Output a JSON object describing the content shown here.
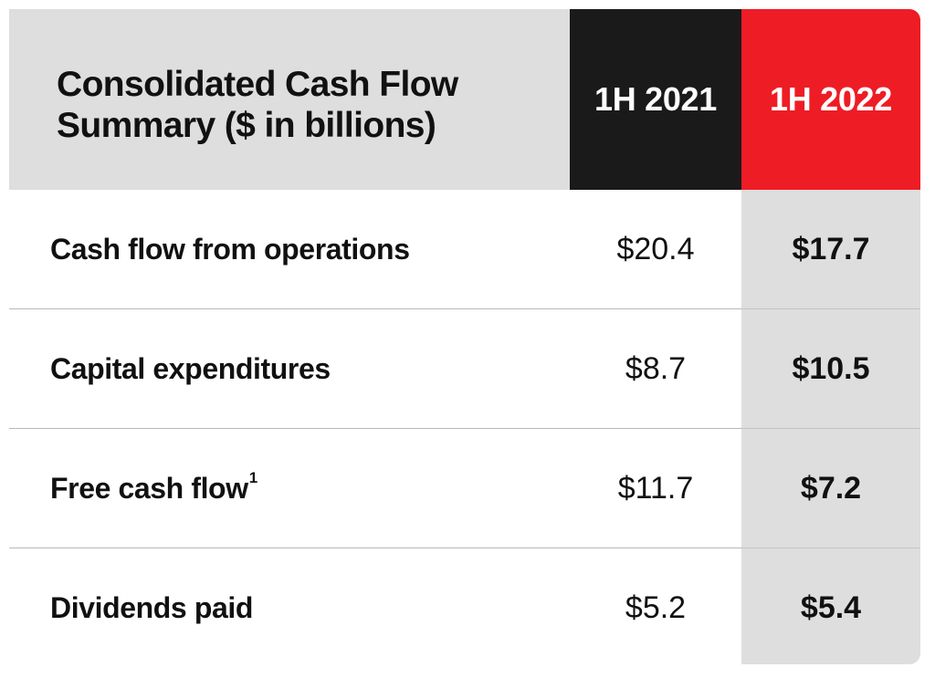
{
  "colors": {
    "header_gray": "#dedede",
    "col_2021_header": "#1a1a1a",
    "col_2022_header": "#ee1c25",
    "col_2022_body": "#dedede",
    "text": "#111111"
  },
  "chart_data": {
    "type": "table",
    "title": "Consolidated Cash Flow Summary ($ in billions)",
    "title_lines": [
      "Consolidated Cash Flow",
      "Summary ($ in billions)"
    ],
    "columns": [
      "1H 2021",
      "1H 2022"
    ],
    "rows": [
      {
        "label": "Cash flow from operations",
        "footnote": "",
        "values": [
          "$20.4",
          "$17.7"
        ]
      },
      {
        "label": "Capital expenditures",
        "footnote": "",
        "values": [
          "$8.7",
          "$10.5"
        ]
      },
      {
        "label": "Free cash flow",
        "footnote": "1",
        "values": [
          "$11.7",
          "$7.2"
        ]
      },
      {
        "label": "Dividends paid",
        "footnote": "",
        "values": [
          "$5.2",
          "$5.4"
        ]
      }
    ]
  }
}
